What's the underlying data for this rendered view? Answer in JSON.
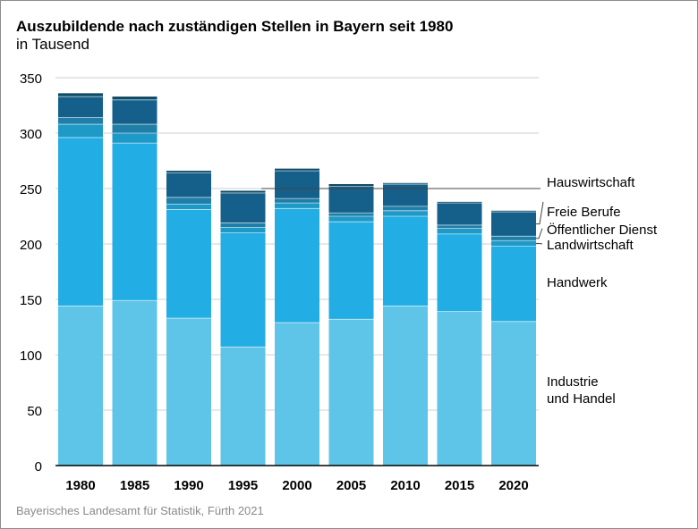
{
  "title": "Auszubildende nach zuständigen Stellen in Bayern seit 1980",
  "subtitle": "in Tausend",
  "source": "Bayerisches Landesamt für Statistik, Fürth 2021",
  "colors": {
    "industrie_handel": "#5ec4e8",
    "handwerk": "#22ade4",
    "landwirtschaft": "#1e9ac8",
    "oeffentlicher_dienst": "#1f7fa8",
    "freie_berufe": "#14608a",
    "hauswirtschaft": "#0c4a66",
    "grid": "#cfcfcf",
    "axis": "#000000"
  },
  "chart_data": {
    "type": "bar",
    "stacked": true,
    "categories": [
      "1980",
      "1985",
      "1990",
      "1995",
      "2000",
      "2005",
      "2010",
      "2015",
      "2020"
    ],
    "ylim": [
      0,
      350
    ],
    "yticks": [
      0,
      50,
      100,
      150,
      200,
      250,
      300,
      350
    ],
    "grid": true,
    "legend_placement": "right, labels beside the last bar",
    "series": [
      {
        "name": "Industrie\nund Handel",
        "key": "industrie_handel",
        "values": [
          144,
          149,
          133,
          107,
          129,
          132,
          144,
          139,
          130
        ]
      },
      {
        "name": "Handwerk",
        "key": "handwerk",
        "values": [
          152,
          142,
          98,
          103,
          103,
          88,
          81,
          70,
          68
        ]
      },
      {
        "name": "Landwirtschaft",
        "key": "landwirtschaft",
        "values": [
          12,
          9,
          5,
          5,
          5,
          5,
          5,
          5,
          5
        ]
      },
      {
        "name": "Öffentlicher Dienst",
        "key": "oeffentlicher_dienst",
        "values": [
          6,
          8,
          6,
          4,
          4,
          3,
          4,
          3,
          4
        ]
      },
      {
        "name": "Freie Berufe",
        "key": "freie_berufe",
        "values": [
          19,
          22,
          22,
          27,
          25,
          24,
          20,
          20,
          22
        ]
      },
      {
        "name": "Hauswirtschaft",
        "key": "hauswirtschaft",
        "values": [
          3,
          3,
          2,
          2,
          2,
          2,
          1,
          1,
          1
        ]
      }
    ]
  }
}
